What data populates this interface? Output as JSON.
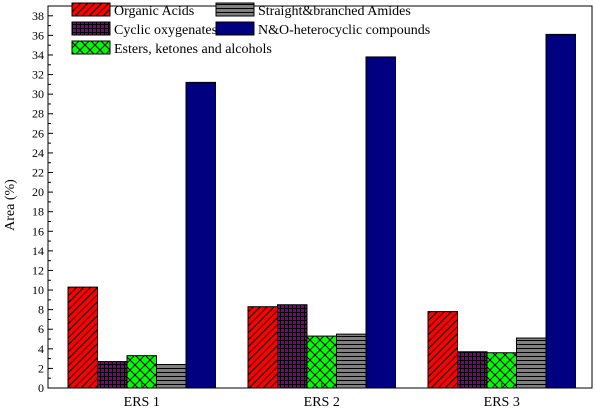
{
  "chart_data": {
    "type": "bar",
    "ylabel": "Area (%)",
    "xlabel": "",
    "ylim": [
      0,
      39
    ],
    "yticks": [
      0,
      2,
      4,
      6,
      8,
      10,
      12,
      14,
      16,
      18,
      20,
      22,
      24,
      26,
      28,
      30,
      32,
      34,
      36,
      38
    ],
    "categories": [
      "ERS 1",
      "ERS 2",
      "ERS 3"
    ],
    "grid": false,
    "legend_position": "top-left",
    "series": [
      {
        "name": "Organic Acids",
        "values": [
          10.3,
          8.3,
          7.8
        ],
        "color": "#ff0000",
        "pattern": "diagonal-hatch"
      },
      {
        "name": "Cyclic oxygenates",
        "values": [
          2.7,
          8.5,
          3.7
        ],
        "color": "#800080",
        "pattern": "grid"
      },
      {
        "name": "Esters, ketones and alcohols",
        "values": [
          3.3,
          5.3,
          3.6
        ],
        "color": "#00ff00",
        "pattern": "crosshatch"
      },
      {
        "name": "Straight&branched Amides",
        "values": [
          2.4,
          5.5,
          5.1
        ],
        "color": "#808080",
        "pattern": "horizontal-lines"
      },
      {
        "name": "N&O-heterocyclic compounds",
        "values": [
          31.2,
          33.8,
          36.1
        ],
        "color": "#000080",
        "pattern": "solid"
      }
    ]
  }
}
